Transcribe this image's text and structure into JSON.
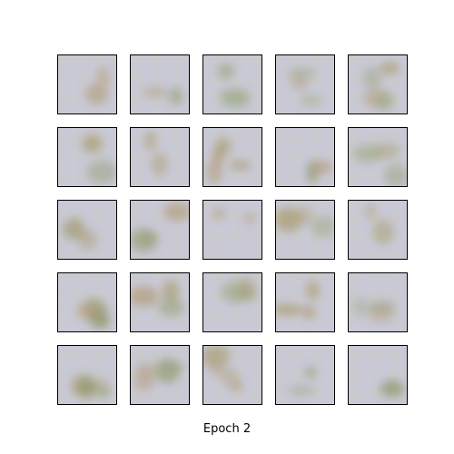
{
  "caption": "Epoch 2"
}
